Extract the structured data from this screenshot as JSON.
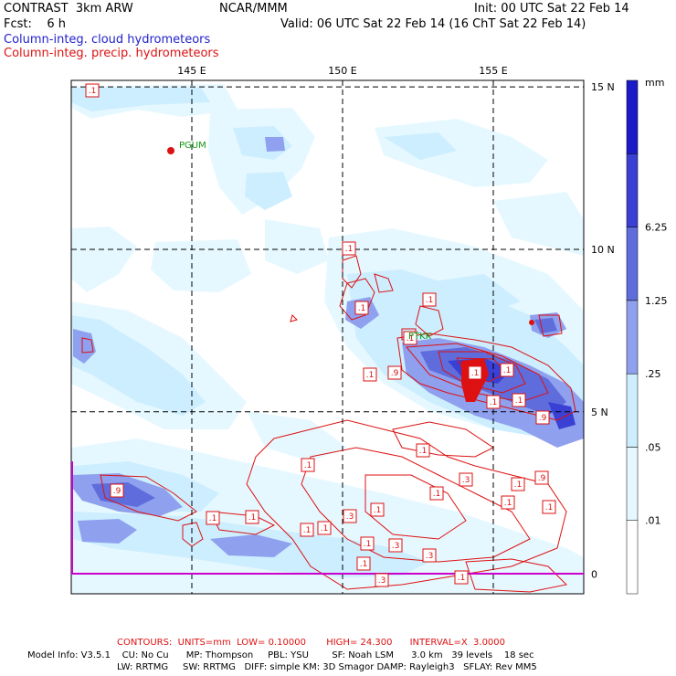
{
  "header": {
    "left_line1": "CONTRAST  3km ARW",
    "center_line1": "NCAR/MMM",
    "right_line1": "Init: 00 UTC Sat 22 Feb 14",
    "left_line2": "Fcst:    6 h",
    "right_line2": "Valid: 06 UTC Sat 22 Feb 14 (16 ChT Sat 22 Feb 14)",
    "field1": "Column-integ. cloud hydrometeors",
    "field2": "Column-integ. precip. hydrometeors"
  },
  "colors": {
    "field1_text": "#2222cc",
    "field2_text": "#dd1111",
    "contour": "#dd1111",
    "station_label": "#119911",
    "bottom_line": "#cc00cc"
  },
  "stations": [
    "PGUM",
    "PTKK"
  ],
  "footer": {
    "contours": "CONTOURS:  UNITS=mm  LOW= 0.10000       HIGH= 24.300      INTERVAL=X  3.0000",
    "model_line1": "Model Info: V3.5.1    CU: No Cu      MP: Thompson     PBL: YSU        SF: Noah LSM      3.0 km   39 levels    18 sec",
    "model_line2": "LW: RRTMG     SW: RRTMG   DIFF: simple KM: 3D Smagor DAMP: Rayleigh3   SFLAY: Rev MM5"
  },
  "chart_data": {
    "type": "heatmap",
    "title": "Column-integ. cloud hydrometeors / Column-integ. precip. hydrometeors",
    "x_axis": {
      "ticks": [
        "145 E",
        "150 E",
        "155 E"
      ],
      "values": [
        145,
        150,
        155
      ],
      "range": [
        141,
        158
      ]
    },
    "y_axis": {
      "ticks": [
        "15 N",
        "10 N",
        "5 N",
        "0"
      ],
      "values": [
        15,
        10,
        5,
        0
      ],
      "range": [
        -0.6,
        15.2
      ]
    },
    "colorbar": {
      "unit": "mm",
      "labels": [
        "6.25",
        "1.25",
        ".25",
        ".05",
        ".01"
      ],
      "levels": [
        0.01,
        0.05,
        0.25,
        1.25,
        6.25
      ],
      "colors": [
        "#ffffff",
        "#e6f8ff",
        "#cceeff",
        "#8fa0ee",
        "#5f6ddc",
        "#3a40d4",
        "#1a1ac8"
      ]
    },
    "grid": true,
    "contour_labels": [
      ".1",
      ".1",
      ".1",
      ".1",
      ".1",
      ".1",
      ".9",
      ".1",
      ".1",
      ".1",
      ".9",
      ".1",
      ".1",
      ".3",
      ".9",
      ".1",
      ".1",
      ".9",
      ".1",
      ".1",
      ".1",
      ".1",
      ".1",
      ".3",
      ".1",
      ".3",
      ".1",
      ".3",
      ".1",
      ".3",
      ".1",
      ".1",
      ".1"
    ],
    "contour_values": {
      "low": 0.1,
      "high": 24.3,
      "interval": 3.0
    }
  }
}
